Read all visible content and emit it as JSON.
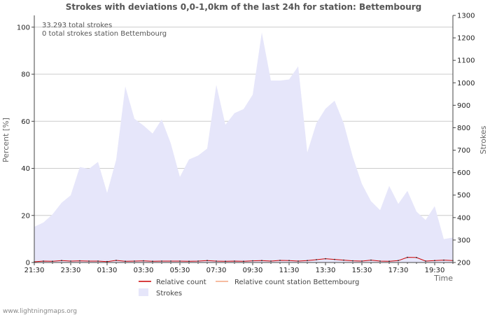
{
  "chart_data": {
    "type": "area",
    "title": "Strokes with deviations 0,0-1,0km of the last 24h for station: Bettembourg",
    "info_lines": [
      "33.293 total strokes",
      "0 total strokes station Bettembourg"
    ],
    "xlabel": "Time",
    "ylabel_left": "Percent   [%]",
    "ylabel_right": "Strokes",
    "x_ticks": [
      "21:30",
      "23:30",
      "01:30",
      "03:30",
      "05:30",
      "07:30",
      "09:30",
      "11:30",
      "13:30",
      "15:30",
      "17:30",
      "19:30"
    ],
    "ylim_left": [
      0,
      105
    ],
    "yticks_left": [
      0,
      20,
      40,
      60,
      80,
      100
    ],
    "ylim_right": [
      200,
      1300
    ],
    "yticks_right": [
      200,
      300,
      400,
      500,
      600,
      700,
      800,
      900,
      1000,
      1100,
      1200,
      1300
    ],
    "series": [
      {
        "name": "Strokes",
        "axis": "right",
        "color": "#e6e6fa",
        "values": [
          359,
          378,
          414,
          466,
          499,
          625,
          617,
          648,
          510,
          658,
          984,
          840,
          810,
          774,
          837,
          730,
          581,
          659,
          676,
          707,
          991,
          813,
          865,
          883,
          947,
          1224,
          1010,
          1010,
          1015,
          1073,
          690,
          820,
          885,
          920,
          820,
          670,
          550,
          473,
          433,
          541,
          461,
          519,
          427,
          389,
          451,
          304,
          311
        ]
      },
      {
        "name": "Relative count",
        "axis": "left",
        "color": "#cc0000",
        "values": [
          0.3,
          0.6,
          0.5,
          0.8,
          0.6,
          0.7,
          0.6,
          0.6,
          0.4,
          0.9,
          0.5,
          0.6,
          0.7,
          0.5,
          0.6,
          0.6,
          0.6,
          0.5,
          0.6,
          0.8,
          0.6,
          0.5,
          0.6,
          0.5,
          0.7,
          0.8,
          0.6,
          0.9,
          0.8,
          0.6,
          0.8,
          1.2,
          1.6,
          1.3,
          1.0,
          0.7,
          0.6,
          1.0,
          0.6,
          0.5,
          0.8,
          2.2,
          2.1,
          0.6,
          0.8,
          1.0,
          0.8
        ]
      },
      {
        "name": "Relative count station Bettembourg",
        "axis": "left",
        "color": "#f4a582",
        "values": []
      }
    ],
    "legend": [
      {
        "label": "Relative count",
        "style": "line",
        "color": "#cc0000"
      },
      {
        "label": "Relative count station Bettembourg",
        "style": "line",
        "color": "#f4a582"
      },
      {
        "label": "Strokes",
        "style": "box",
        "color": "#e6e6fa"
      }
    ]
  },
  "footer": "www.lightningmaps.org"
}
